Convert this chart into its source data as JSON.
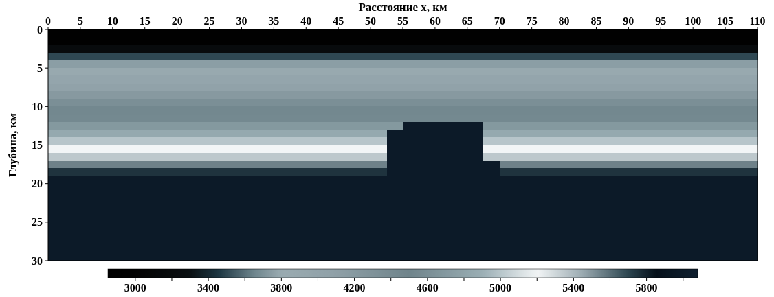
{
  "chart_data": {
    "type": "heatmap",
    "xlabel": "Расстояние x, км",
    "ylabel": "Глубина, км",
    "xlim": [
      0,
      110
    ],
    "xticks": [
      0,
      5,
      10,
      15,
      20,
      25,
      30,
      35,
      40,
      45,
      50,
      55,
      60,
      65,
      70,
      75,
      80,
      85,
      90,
      95,
      100,
      105,
      110
    ],
    "ylim": [
      30,
      0
    ],
    "yticks": [
      0,
      5,
      10,
      15,
      20,
      25,
      30
    ],
    "clim": [
      2850,
      6080
    ],
    "cticks": [
      3000,
      {
        "value": 3200,
        "label": null
      },
      3400,
      {
        "value": 3600,
        "label": null
      },
      3800,
      {
        "value": 4000,
        "label": null
      },
      4200,
      {
        "value": 4400,
        "label": null
      },
      4600,
      {
        "value": 4800,
        "label": null
      },
      5000,
      {
        "value": 5200,
        "label": null
      },
      5400,
      {
        "value": 5600,
        "label": null
      },
      5800,
      {
        "value": 6000,
        "label": null
      }
    ],
    "cells": [
      [
        2900,
        2900,
        2900,
        2900,
        2900,
        2900,
        2900,
        2900,
        2900,
        2900,
        2900,
        2900,
        2900,
        2900,
        2900,
        2900,
        2900,
        2900,
        2900,
        2900,
        2900,
        2900,
        2900,
        2900,
        2900,
        2900,
        2900,
        2900,
        2900,
        2900,
        2900,
        2900,
        2900,
        2900,
        2900,
        2900,
        2900,
        2900,
        2900,
        2900,
        2900,
        2900,
        2900,
        2900
      ],
      [
        2900,
        2900,
        2900,
        2900,
        2900,
        2900,
        2900,
        2900,
        2900,
        2900,
        2900,
        2900,
        2900,
        2900,
        2900,
        2900,
        2900,
        2900,
        2900,
        2900,
        2900,
        2900,
        2900,
        2900,
        2900,
        2900,
        2900,
        2900,
        2900,
        2900,
        2900,
        2900,
        2900,
        2900,
        2900,
        2900,
        2900,
        2900,
        2900,
        2900,
        2900,
        2900,
        2900,
        2900
      ],
      [
        3200,
        3200,
        3200,
        3200,
        3200,
        3200,
        3200,
        3200,
        3200,
        3200,
        3200,
        3200,
        3200,
        3200,
        3200,
        3200,
        3200,
        3200,
        3200,
        3200,
        3200,
        3200,
        3200,
        3200,
        3200,
        3200,
        3200,
        3200,
        3200,
        3200,
        3200,
        3200,
        3200,
        3200,
        3200,
        3200,
        3200,
        3200,
        3200,
        3200,
        3200,
        3200,
        3200,
        3200
      ],
      [
        3500,
        3500,
        3500,
        3500,
        3500,
        3500,
        3500,
        3500,
        3500,
        3500,
        3500,
        3500,
        3500,
        3500,
        3500,
        3500,
        3500,
        3500,
        3500,
        3500,
        3500,
        3500,
        3500,
        3500,
        3500,
        3500,
        3500,
        3500,
        3500,
        3500,
        3500,
        3500,
        3500,
        3500,
        3500,
        3500,
        3500,
        3500,
        3500,
        3500,
        3500,
        3500,
        3500,
        3500
      ],
      [
        3750,
        3750,
        3750,
        3750,
        3750,
        3750,
        3750,
        3750,
        3750,
        3750,
        3750,
        3750,
        3750,
        3750,
        3750,
        3750,
        3750,
        3750,
        3750,
        3750,
        3750,
        3750,
        3750,
        3750,
        3750,
        3750,
        3750,
        3750,
        3750,
        3750,
        3750,
        3750,
        3750,
        3750,
        3750,
        3750,
        3750,
        3750,
        3750,
        3750,
        3750,
        3750,
        3750,
        3750
      ],
      [
        3850,
        3850,
        3850,
        3850,
        3850,
        3850,
        3850,
        3850,
        3850,
        3850,
        3850,
        3850,
        3850,
        3850,
        3850,
        3850,
        3850,
        3850,
        3850,
        3850,
        3850,
        3850,
        3850,
        3850,
        3850,
        3850,
        3850,
        3850,
        3850,
        3850,
        3850,
        3850,
        3850,
        3850,
        3850,
        3850,
        3850,
        3850,
        3850,
        3850,
        3850,
        3850,
        3850,
        3850
      ],
      [
        3950,
        3950,
        3950,
        3950,
        3950,
        3950,
        3950,
        3950,
        3950,
        3950,
        3950,
        3950,
        3950,
        3950,
        3950,
        3950,
        3950,
        3950,
        3950,
        3950,
        3950,
        3950,
        3950,
        3950,
        3950,
        3950,
        3950,
        3950,
        3950,
        3950,
        3950,
        3950,
        3950,
        3950,
        3950,
        3950,
        3950,
        3950,
        3950,
        3950,
        3950,
        3950,
        3950,
        3950
      ],
      [
        4050,
        4050,
        4050,
        4050,
        4050,
        4050,
        4050,
        4050,
        4050,
        4050,
        4050,
        4050,
        4050,
        4050,
        4050,
        4050,
        4050,
        4050,
        4050,
        4050,
        4050,
        4050,
        4050,
        4050,
        4050,
        4050,
        4050,
        4050,
        4050,
        4050,
        4050,
        4050,
        4050,
        4050,
        4050,
        4050,
        4050,
        4050,
        4050,
        4050,
        4050,
        4050,
        4050,
        4050
      ],
      [
        4200,
        4200,
        4200,
        4200,
        4200,
        4200,
        4200,
        4200,
        4200,
        4200,
        4200,
        4200,
        4200,
        4200,
        4200,
        4200,
        4200,
        4200,
        4200,
        4200,
        4200,
        4200,
        4200,
        4200,
        4200,
        4200,
        4200,
        4200,
        4200,
        4200,
        4200,
        4200,
        4200,
        4200,
        4200,
        4200,
        4200,
        4200,
        4200,
        4200,
        4200,
        4200,
        4200,
        4200
      ],
      [
        4350,
        4350,
        4350,
        4350,
        4350,
        4350,
        4350,
        4350,
        4350,
        4350,
        4350,
        4350,
        4350,
        4350,
        4350,
        4350,
        4350,
        4350,
        4350,
        4350,
        4350,
        4350,
        4350,
        4350,
        4350,
        4350,
        4350,
        4350,
        4350,
        4350,
        4350,
        4350,
        4350,
        4350,
        4350,
        4350,
        4350,
        4350,
        4350,
        4350,
        4350,
        4350,
        4350,
        4350
      ],
      [
        4450,
        4450,
        4450,
        4450,
        4450,
        4450,
        4450,
        4450,
        4450,
        4450,
        4450,
        4450,
        4450,
        4450,
        4450,
        4450,
        4450,
        4450,
        4450,
        4450,
        4450,
        4450,
        4450,
        4450,
        4450,
        4450,
        4450,
        4450,
        4450,
        4450,
        4450,
        4450,
        4450,
        4450,
        4450,
        4450,
        4450,
        4450,
        4450,
        4450,
        4450,
        4450,
        4450,
        4450
      ],
      [
        4550,
        4550,
        4550,
        4550,
        4550,
        4550,
        4550,
        4550,
        4550,
        4550,
        4550,
        4550,
        4550,
        4550,
        4550,
        4550,
        4550,
        4550,
        4550,
        4550,
        4550,
        4550,
        4550,
        4550,
        4550,
        4550,
        4550,
        4550,
        4550,
        4550,
        4550,
        4550,
        4550,
        4550,
        4550,
        4550,
        4550,
        4550,
        4550,
        4550,
        4550,
        4550,
        4550,
        4550
      ],
      [
        4700,
        4700,
        4700,
        4700,
        4700,
        4700,
        4700,
        4700,
        4700,
        4700,
        4700,
        4700,
        4700,
        4700,
        4700,
        4700,
        4700,
        4700,
        4700,
        4700,
        4700,
        4700,
        6000,
        6000,
        6000,
        6000,
        6000,
        4700,
        4700,
        4700,
        4700,
        4700,
        4700,
        4700,
        4700,
        4700,
        4700,
        4700,
        4700,
        4700,
        4700,
        4700,
        4700,
        4700
      ],
      [
        4850,
        4850,
        4850,
        4850,
        4850,
        4850,
        4850,
        4850,
        4850,
        4850,
        4850,
        4850,
        4850,
        4850,
        4850,
        4850,
        4850,
        4850,
        4850,
        4850,
        4850,
        6000,
        6000,
        6000,
        6000,
        6000,
        6000,
        4850,
        4850,
        4850,
        4850,
        4850,
        4850,
        4850,
        4850,
        4850,
        4850,
        4850,
        4850,
        4850,
        4850,
        4850,
        4850,
        4850
      ],
      [
        5000,
        5000,
        5000,
        5000,
        5000,
        5000,
        5000,
        5000,
        5000,
        5000,
        5000,
        5000,
        5000,
        5000,
        5000,
        5000,
        5000,
        5000,
        5000,
        5000,
        5000,
        6000,
        6000,
        6000,
        6000,
        6000,
        6000,
        5000,
        5000,
        5000,
        5000,
        5000,
        5000,
        5000,
        5000,
        5000,
        5000,
        5000,
        5000,
        5000,
        5000,
        5000,
        5000,
        5000
      ],
      [
        5200,
        5200,
        5200,
        5200,
        5200,
        5200,
        5200,
        5200,
        5200,
        5200,
        5200,
        5200,
        5200,
        5200,
        5200,
        5200,
        5200,
        5200,
        5200,
        5200,
        5200,
        6000,
        6000,
        6000,
        6000,
        6000,
        6000,
        5200,
        5200,
        5200,
        5200,
        5200,
        5200,
        5200,
        5200,
        5200,
        5200,
        5200,
        5200,
        5200,
        5200,
        5200,
        5200,
        5200
      ],
      [
        5350,
        5350,
        5350,
        5350,
        5350,
        5350,
        5350,
        5350,
        5350,
        5350,
        5350,
        5350,
        5350,
        5350,
        5350,
        5350,
        5350,
        5350,
        5350,
        5350,
        5350,
        6000,
        6000,
        6000,
        6000,
        6000,
        6000,
        5350,
        5350,
        5350,
        5350,
        5350,
        5350,
        5350,
        5350,
        5350,
        5350,
        5350,
        5350,
        5350,
        5350,
        5350,
        5350,
        5350
      ],
      [
        5550,
        5550,
        5550,
        5550,
        5550,
        5550,
        5550,
        5550,
        5550,
        5550,
        5550,
        5550,
        5550,
        5550,
        5550,
        5550,
        5550,
        5550,
        5550,
        5550,
        5550,
        6000,
        6000,
        6000,
        6000,
        6000,
        6000,
        6000,
        5550,
        5550,
        5550,
        5550,
        5550,
        5550,
        5550,
        5550,
        5550,
        5550,
        5550,
        5550,
        5550,
        5550,
        5550,
        5550
      ],
      [
        5750,
        5750,
        5750,
        5750,
        5750,
        5750,
        5750,
        5750,
        5750,
        5750,
        5750,
        5750,
        5750,
        5750,
        5750,
        5750,
        5750,
        5750,
        5750,
        5750,
        5750,
        6000,
        6000,
        6000,
        6000,
        6000,
        6000,
        6000,
        5750,
        5750,
        5750,
        5750,
        5750,
        5750,
        5750,
        5750,
        5750,
        5750,
        5750,
        5750,
        5750,
        5750,
        5750,
        5750
      ],
      [
        6000,
        6000,
        6000,
        6000,
        6000,
        6000,
        6000,
        6000,
        6000,
        6000,
        6000,
        6000,
        6000,
        6000,
        6000,
        6000,
        6000,
        6000,
        6000,
        6000,
        6000,
        6000,
        6000,
        6000,
        6000,
        6000,
        6000,
        6000,
        6000,
        6000,
        6000,
        6000,
        6000,
        6000,
        6000,
        6000,
        6000,
        6000,
        6000,
        6000,
        6000,
        6000,
        6000,
        6000
      ],
      [
        6000,
        6000,
        6000,
        6000,
        6000,
        6000,
        6000,
        6000,
        6000,
        6000,
        6000,
        6000,
        6000,
        6000,
        6000,
        6000,
        6000,
        6000,
        6000,
        6000,
        6000,
        6000,
        6000,
        6000,
        6000,
        6000,
        6000,
        6000,
        6000,
        6000,
        6000,
        6000,
        6000,
        6000,
        6000,
        6000,
        6000,
        6000,
        6000,
        6000,
        6000,
        6000,
        6000,
        6000
      ],
      [
        6000,
        6000,
        6000,
        6000,
        6000,
        6000,
        6000,
        6000,
        6000,
        6000,
        6000,
        6000,
        6000,
        6000,
        6000,
        6000,
        6000,
        6000,
        6000,
        6000,
        6000,
        6000,
        6000,
        6000,
        6000,
        6000,
        6000,
        6000,
        6000,
        6000,
        6000,
        6000,
        6000,
        6000,
        6000,
        6000,
        6000,
        6000,
        6000,
        6000,
        6000,
        6000,
        6000,
        6000
      ],
      [
        6000,
        6000,
        6000,
        6000,
        6000,
        6000,
        6000,
        6000,
        6000,
        6000,
        6000,
        6000,
        6000,
        6000,
        6000,
        6000,
        6000,
        6000,
        6000,
        6000,
        6000,
        6000,
        6000,
        6000,
        6000,
        6000,
        6000,
        6000,
        6000,
        6000,
        6000,
        6000,
        6000,
        6000,
        6000,
        6000,
        6000,
        6000,
        6000,
        6000,
        6000,
        6000,
        6000,
        6000
      ],
      [
        6000,
        6000,
        6000,
        6000,
        6000,
        6000,
        6000,
        6000,
        6000,
        6000,
        6000,
        6000,
        6000,
        6000,
        6000,
        6000,
        6000,
        6000,
        6000,
        6000,
        6000,
        6000,
        6000,
        6000,
        6000,
        6000,
        6000,
        6000,
        6000,
        6000,
        6000,
        6000,
        6000,
        6000,
        6000,
        6000,
        6000,
        6000,
        6000,
        6000,
        6000,
        6000,
        6000,
        6000
      ],
      [
        6000,
        6000,
        6000,
        6000,
        6000,
        6000,
        6000,
        6000,
        6000,
        6000,
        6000,
        6000,
        6000,
        6000,
        6000,
        6000,
        6000,
        6000,
        6000,
        6000,
        6000,
        6000,
        6000,
        6000,
        6000,
        6000,
        6000,
        6000,
        6000,
        6000,
        6000,
        6000,
        6000,
        6000,
        6000,
        6000,
        6000,
        6000,
        6000,
        6000,
        6000,
        6000,
        6000,
        6000
      ],
      [
        6000,
        6000,
        6000,
        6000,
        6000,
        6000,
        6000,
        6000,
        6000,
        6000,
        6000,
        6000,
        6000,
        6000,
        6000,
        6000,
        6000,
        6000,
        6000,
        6000,
        6000,
        6000,
        6000,
        6000,
        6000,
        6000,
        6000,
        6000,
        6000,
        6000,
        6000,
        6000,
        6000,
        6000,
        6000,
        6000,
        6000,
        6000,
        6000,
        6000,
        6000,
        6000,
        6000,
        6000
      ],
      [
        6000,
        6000,
        6000,
        6000,
        6000,
        6000,
        6000,
        6000,
        6000,
        6000,
        6000,
        6000,
        6000,
        6000,
        6000,
        6000,
        6000,
        6000,
        6000,
        6000,
        6000,
        6000,
        6000,
        6000,
        6000,
        6000,
        6000,
        6000,
        6000,
        6000,
        6000,
        6000,
        6000,
        6000,
        6000,
        6000,
        6000,
        6000,
        6000,
        6000,
        6000,
        6000,
        6000,
        6000
      ],
      [
        6000,
        6000,
        6000,
        6000,
        6000,
        6000,
        6000,
        6000,
        6000,
        6000,
        6000,
        6000,
        6000,
        6000,
        6000,
        6000,
        6000,
        6000,
        6000,
        6000,
        6000,
        6000,
        6000,
        6000,
        6000,
        6000,
        6000,
        6000,
        6000,
        6000,
        6000,
        6000,
        6000,
        6000,
        6000,
        6000,
        6000,
        6000,
        6000,
        6000,
        6000,
        6000,
        6000,
        6000
      ],
      [
        6000,
        6000,
        6000,
        6000,
        6000,
        6000,
        6000,
        6000,
        6000,
        6000,
        6000,
        6000,
        6000,
        6000,
        6000,
        6000,
        6000,
        6000,
        6000,
        6000,
        6000,
        6000,
        6000,
        6000,
        6000,
        6000,
        6000,
        6000,
        6000,
        6000,
        6000,
        6000,
        6000,
        6000,
        6000,
        6000,
        6000,
        6000,
        6000,
        6000,
        6000,
        6000,
        6000,
        6000
      ],
      [
        6000,
        6000,
        6000,
        6000,
        6000,
        6000,
        6000,
        6000,
        6000,
        6000,
        6000,
        6000,
        6000,
        6000,
        6000,
        6000,
        6000,
        6000,
        6000,
        6000,
        6000,
        6000,
        6000,
        6000,
        6000,
        6000,
        6000,
        6000,
        6000,
        6000,
        6000,
        6000,
        6000,
        6000,
        6000,
        6000,
        6000,
        6000,
        6000,
        6000,
        6000,
        6000,
        6000,
        6000
      ]
    ]
  }
}
